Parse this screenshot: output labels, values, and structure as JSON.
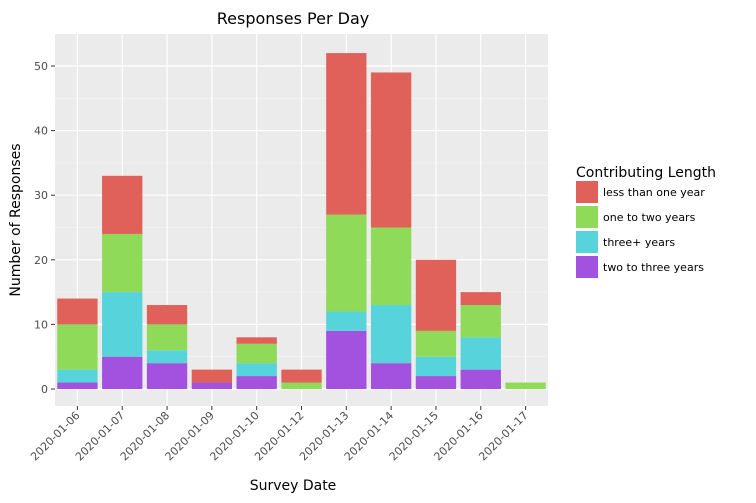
{
  "chart_data": {
    "type": "bar",
    "stacked": true,
    "title": "Responses Per Day",
    "xlabel": "Survey Date",
    "ylabel": "Number of Responses",
    "categories": [
      "2020-01-06",
      "2020-01-07",
      "2020-01-08",
      "2020-01-09",
      "2020-01-10",
      "2020-01-12",
      "2020-01-13",
      "2020-01-14",
      "2020-01-15",
      "2020-01-16",
      "2020-01-17"
    ],
    "ylim": [
      0,
      55
    ],
    "yticks": [
      0,
      10,
      20,
      30,
      40,
      50
    ],
    "grid": true,
    "legend_title": "Contributing Length",
    "legend_position": "right",
    "series": [
      {
        "name": "two to three years",
        "color": "#a252de",
        "values": [
          1,
          5,
          4,
          1,
          2,
          0,
          9,
          4,
          2,
          3,
          0
        ]
      },
      {
        "name": "three+ years",
        "color": "#56d3db",
        "values": [
          2,
          10,
          2,
          0,
          2,
          0,
          3,
          9,
          3,
          5,
          0
        ]
      },
      {
        "name": "one to two years",
        "color": "#8fda58",
        "values": [
          7,
          9,
          4,
          0,
          3,
          1,
          15,
          12,
          4,
          5,
          1
        ]
      },
      {
        "name": "less than one year",
        "color": "#e0615a",
        "values": [
          4,
          9,
          3,
          2,
          1,
          2,
          25,
          24,
          11,
          2,
          0
        ]
      }
    ],
    "legend_order": [
      "less than one year",
      "one to two years",
      "three+ years",
      "two to three years"
    ]
  }
}
